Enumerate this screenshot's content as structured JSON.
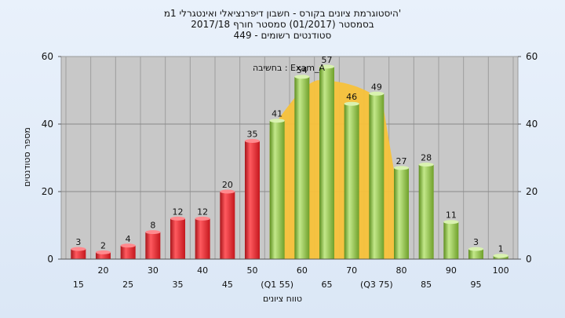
{
  "chart_data": {
    "type": "bar",
    "title_lines": [
      "היסטוגרמת ציונים בקורס - חשבון דיפרנציאלי ואינטגרלי 1מ'",
      "בסמסטר  (01/2017)  סמסטר חורף  2017/18",
      "449 - סטודנטים רשומים"
    ],
    "xlabel": "טווח ציונים",
    "ylabel": "מספר סטודנטים",
    "ylim": [
      0,
      60
    ],
    "yticks": [
      0,
      20,
      40,
      60
    ],
    "grid": true,
    "categories": [
      "15",
      "20",
      "25",
      "30",
      "35",
      "40",
      "45",
      "50",
      "(Q1 55)",
      "60",
      "65",
      "70",
      "(Q3 75)",
      "80",
      "85",
      "90",
      "95",
      "100"
    ],
    "values": [
      3,
      2,
      4,
      8,
      12,
      12,
      20,
      35,
      41,
      54,
      57,
      46,
      49,
      27,
      28,
      11,
      3,
      1
    ],
    "bar_colors": [
      "red",
      "red",
      "red",
      "red",
      "red",
      "red",
      "red",
      "red",
      "green",
      "green",
      "green",
      "green",
      "green",
      "green",
      "green",
      "green",
      "green",
      "green"
    ],
    "overlay": {
      "label": "בחשיבה : Exam_A",
      "color": "#f8c23a",
      "x_range": [
        "(Q1 55)",
        "(Q3 75)"
      ]
    },
    "colors": {
      "fail": "#e8282e",
      "pass": "#8dc63f",
      "plot_bg": "#c8c8c8",
      "data_label_blue": "#1f4e9c"
    },
    "blue_label_indices": [
      2
    ]
  }
}
